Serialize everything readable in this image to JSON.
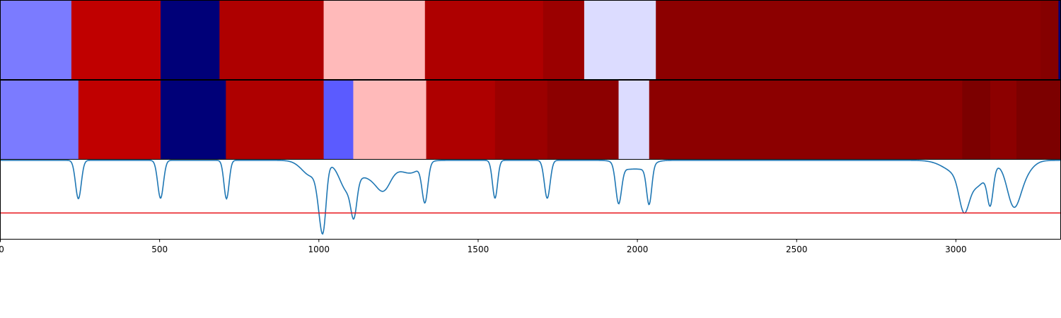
{
  "chart_data": {
    "type": "heatmap",
    "xlim": [
      0,
      3330
    ],
    "x_ticks": [
      0,
      500,
      1000,
      1500,
      2000,
      2500,
      3000
    ],
    "x_tick_labels": [
      "0",
      "500",
      "1000",
      "1500",
      "2000",
      "2500",
      "3000"
    ],
    "segment_rows": [
      {
        "segments": [
          {
            "start": 0,
            "end": 223,
            "color": "#7b7bff"
          },
          {
            "start": 223,
            "end": 503,
            "color": "#c00000"
          },
          {
            "start": 503,
            "end": 688,
            "color": "#000078"
          },
          {
            "start": 688,
            "end": 1015,
            "color": "#ae0000"
          },
          {
            "start": 1015,
            "end": 1333,
            "color": "#ffbaba"
          },
          {
            "start": 1333,
            "end": 1704,
            "color": "#ae0000"
          },
          {
            "start": 1704,
            "end": 1833,
            "color": "#9b0000"
          },
          {
            "start": 1833,
            "end": 2058,
            "color": "#dcdcff"
          },
          {
            "start": 2058,
            "end": 3266,
            "color": "#8c0000"
          },
          {
            "start": 3266,
            "end": 3322,
            "color": "#850000"
          },
          {
            "start": 3322,
            "end": 3330,
            "color": "#000078"
          }
        ]
      },
      {
        "segments": [
          {
            "start": 0,
            "end": 245,
            "color": "#7b7bff"
          },
          {
            "start": 245,
            "end": 503,
            "color": "#c00000"
          },
          {
            "start": 503,
            "end": 708,
            "color": "#000078"
          },
          {
            "start": 708,
            "end": 1015,
            "color": "#ae0000"
          },
          {
            "start": 1015,
            "end": 1108,
            "color": "#5b5bff"
          },
          {
            "start": 1108,
            "end": 1337,
            "color": "#ffbaba"
          },
          {
            "start": 1337,
            "end": 1553,
            "color": "#ae0000"
          },
          {
            "start": 1553,
            "end": 1717,
            "color": "#9b0000"
          },
          {
            "start": 1717,
            "end": 1941,
            "color": "#8c0000"
          },
          {
            "start": 1941,
            "end": 2037,
            "color": "#dcdcff"
          },
          {
            "start": 2037,
            "end": 3020,
            "color": "#8c0000"
          },
          {
            "start": 3020,
            "end": 3108,
            "color": "#7c0000"
          },
          {
            "start": 3108,
            "end": 3190,
            "color": "#8c0000"
          },
          {
            "start": 3190,
            "end": 3330,
            "color": "#7c0000"
          }
        ]
      }
    ],
    "line": {
      "color": "#1f77b4",
      "ylim": [
        -1.5,
        0.02
      ],
      "baseline": 0,
      "dips": [
        {
          "center": 245,
          "depth": 0.73,
          "width": 9
        },
        {
          "center": 503,
          "depth": 0.72,
          "width": 9
        },
        {
          "center": 710,
          "depth": 0.73,
          "width": 8
        },
        {
          "center": 978,
          "depth": 0.3,
          "width": 30
        },
        {
          "center": 1003,
          "depth": 0.55,
          "width": 10
        },
        {
          "center": 1015,
          "depth": 0.92,
          "width": 9
        },
        {
          "center": 1090,
          "depth": 0.55,
          "width": 25
        },
        {
          "center": 1110,
          "depth": 0.6,
          "width": 9
        },
        {
          "center": 1180,
          "depth": 0.38,
          "width": 45
        },
        {
          "center": 1205,
          "depth": 0.25,
          "width": 20
        },
        {
          "center": 1290,
          "depth": 0.22,
          "width": 30
        },
        {
          "center": 1333,
          "depth": 0.73,
          "width": 9
        },
        {
          "center": 1553,
          "depth": 0.72,
          "width": 8
        },
        {
          "center": 1717,
          "depth": 0.72,
          "width": 9
        },
        {
          "center": 1941,
          "depth": 0.73,
          "width": 9
        },
        {
          "center": 1965,
          "depth": 0.15,
          "width": 25
        },
        {
          "center": 2020,
          "depth": 0.15,
          "width": 25
        },
        {
          "center": 2037,
          "depth": 0.72,
          "width": 8
        },
        {
          "center": 3000,
          "depth": 0.2,
          "width": 40
        },
        {
          "center": 3025,
          "depth": 0.6,
          "width": 15
        },
        {
          "center": 3065,
          "depth": 0.45,
          "width": 35
        },
        {
          "center": 3108,
          "depth": 0.65,
          "width": 9
        },
        {
          "center": 3180,
          "depth": 0.6,
          "width": 20
        },
        {
          "center": 3200,
          "depth": 0.35,
          "width": 30
        }
      ]
    },
    "threshold": {
      "value": -1.0,
      "color": "#e8131a"
    }
  }
}
